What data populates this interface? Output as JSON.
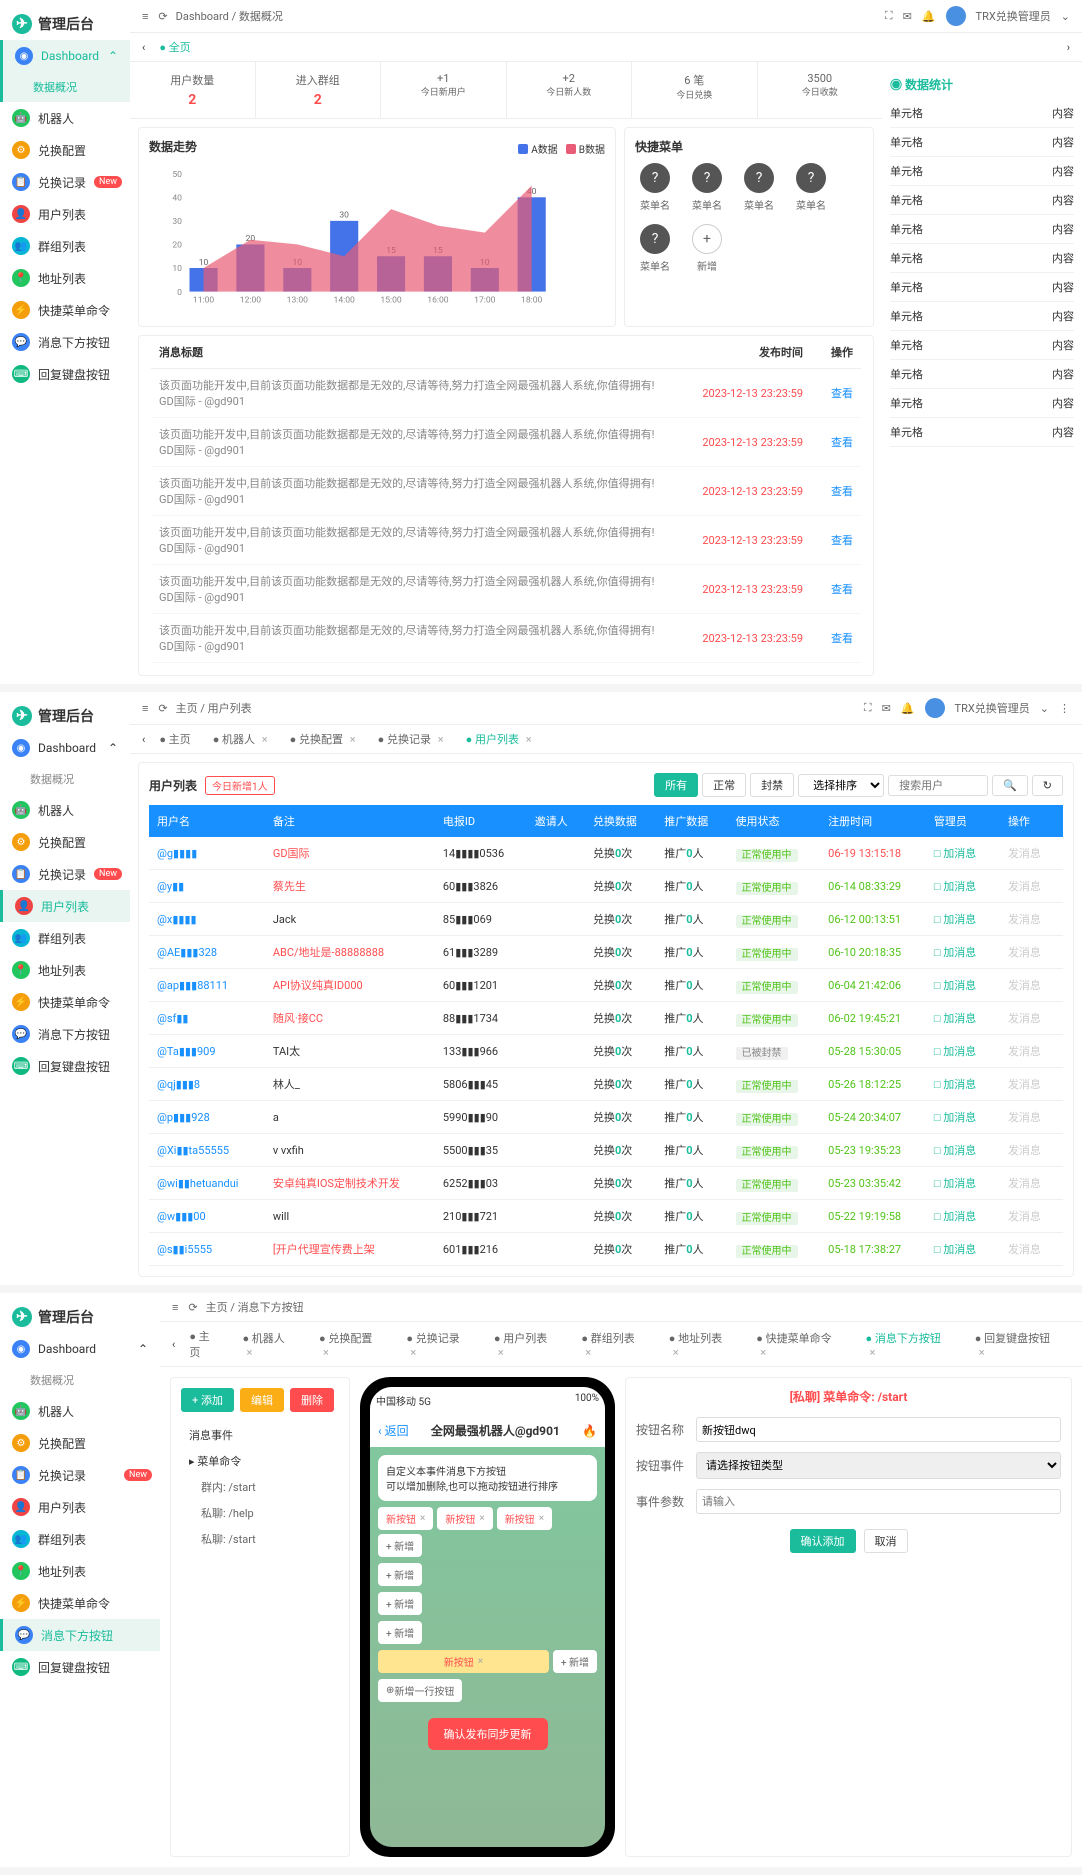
{
  "brand": "管理后台",
  "user_label": "TRX兑换管理员",
  "nav": {
    "dashboard": "Dashboard",
    "overview": "数据概况",
    "robot": "机器人",
    "exchange_cfg": "兑换配置",
    "exchange_log": "兑换记录",
    "new_badge": "New",
    "user_list": "用户列表",
    "group_list": "群组列表",
    "addr_list": "地址列表",
    "shortcut_cmd": "快捷菜单命令",
    "msg_button": "消息下方按钮",
    "reply_kb": "回复键盘按钮"
  },
  "nav_colors": {
    "dashboard": "#3b82f6",
    "robot": "#22c55e",
    "exchange_cfg": "#f59e0b",
    "exchange_log": "#3b82f6",
    "user_list": "#ef4444",
    "group_list": "#06b6d4",
    "addr_list": "#22c55e",
    "shortcut_cmd": "#f59e0b",
    "msg_button": "#3b82f6",
    "reply_kb": "#10b981"
  },
  "breadcrumb1": [
    "Dashboard",
    "数据概况"
  ],
  "tabs1": [
    "全页"
  ],
  "stats": [
    {
      "label": "用户数量",
      "value": "2",
      "red": true
    },
    {
      "label": "进入群组",
      "value": "2",
      "red": true
    },
    {
      "label": "+1",
      "sub": "今日新用户",
      "value": ""
    },
    {
      "label": "+2",
      "sub": "今日新人数",
      "value": ""
    },
    {
      "label": "6 笔",
      "sub": "今日兑换",
      "value": ""
    },
    {
      "label": "3500",
      "sub": "今日收款",
      "value": ""
    }
  ],
  "chart": {
    "title": "数据走势",
    "legend_a": "A数据",
    "legend_b": "B数据",
    "color_a": "#4472e8",
    "color_b": "#e85d75",
    "x": [
      "11:00",
      "12:00",
      "13:00",
      "14:00",
      "15:00",
      "16:00",
      "17:00",
      "18:00"
    ],
    "bars": [
      10,
      20,
      10,
      30,
      15,
      15,
      10,
      40
    ],
    "line": [
      10,
      22,
      20,
      15,
      35,
      28,
      25,
      45
    ],
    "ymax": 50
  },
  "shortcuts": {
    "title": "快捷菜单",
    "label": "菜单名",
    "add": "新增"
  },
  "side_table": {
    "title": "数据统计",
    "col_a": "单元格",
    "col_b": "内容",
    "rows": 12
  },
  "msg_list": {
    "cols": [
      "消息标题",
      "发布时间",
      "操作"
    ],
    "text": "该页面功能开发中,目前该页面功能数据都是无效的,尽请等待,努力打造全网最强机器人系统,你值得拥有! GD国际 - @gd901",
    "times": [
      "2023-12-13 23:23:59",
      "2023-12-13 23:23:59",
      "2023-12-13 23:23:59",
      "2023-12-13 23:23:59",
      "2023-12-13 23:23:59",
      "2023-12-13 23:23:59"
    ],
    "action": "查看"
  },
  "breadcrumb2": [
    "主页",
    "用户列表"
  ],
  "tabs2": [
    "主页",
    "机器人",
    "兑换配置",
    "兑换记录",
    "用户列表"
  ],
  "user_list_title": "用户列表",
  "user_list_pill": "今日新增1人",
  "filter_btns": [
    "所有",
    "正常",
    "封禁"
  ],
  "search_placeholder": "搜索用户",
  "utable_cols": [
    "用户名",
    "备注",
    "电报ID",
    "邀请人",
    "兑换数据",
    "推广数据",
    "使用状态",
    "注册时间",
    "管理员",
    "操作"
  ],
  "urows": [
    {
      "u": "@g▮▮▮▮",
      "r": "GD国际",
      "rc": "red",
      "id": "14▮▮▮▮0536",
      "ex": "兑换0次",
      "pr": "推广0人",
      "st": "正常使用中",
      "t": "06-19 13:15:18",
      "tc": "red"
    },
    {
      "u": "@y▮▮",
      "r": "蔡先生",
      "rc": "red",
      "id": "60▮▮▮3826",
      "ex": "兑换0次",
      "pr": "推广0人",
      "st": "正常使用中",
      "t": "06-14 08:33:29"
    },
    {
      "u": "@x▮▮▮▮",
      "r": "Jack",
      "rc": "",
      "id": "85▮▮▮069",
      "ex": "兑换0次",
      "pr": "推广0人",
      "st": "正常使用中",
      "t": "06-12 00:13:51"
    },
    {
      "u": "@AE▮▮▮328",
      "r": "ABC/地址是-88888888",
      "rc": "red",
      "id": "61▮▮▮3289",
      "ex": "兑换0次",
      "pr": "推广0人",
      "st": "正常使用中",
      "t": "06-10 20:18:35"
    },
    {
      "u": "@ap▮▮▮88111",
      "r": "API协议纯真ID000",
      "rc": "red",
      "id": "60▮▮▮1201",
      "ex": "兑换0次",
      "pr": "推广0人",
      "st": "正常使用中",
      "t": "06-04 21:42:06"
    },
    {
      "u": "@sf▮▮",
      "r": "随风·接CC",
      "rc": "red",
      "id": "88▮▮▮1734",
      "ex": "兑换0次",
      "pr": "推广0人",
      "st": "正常使用中",
      "t": "06-02 19:45:21"
    },
    {
      "u": "@Ta▮▮▮909",
      "r": "TAI太",
      "rc": "",
      "id": "133▮▮▮966",
      "ex": "兑换0次",
      "pr": "推广0人",
      "st": "已被封禁",
      "sc": "gray",
      "t": "05-28 15:30:05"
    },
    {
      "u": "@qj▮▮▮8",
      "r": "林人_",
      "rc": "",
      "id": "5806▮▮▮45",
      "ex": "兑换0次",
      "pr": "推广0人",
      "st": "正常使用中",
      "t": "05-26 18:12:25"
    },
    {
      "u": "@p▮▮▮928",
      "r": "a",
      "rc": "",
      "id": "5990▮▮▮90",
      "ex": "兑换0次",
      "pr": "推广0人",
      "st": "正常使用中",
      "t": "05-24 20:34:07"
    },
    {
      "u": "@Xi▮▮ta55555",
      "r": "v vxfih",
      "rc": "",
      "id": "5500▮▮▮35",
      "ex": "兑换0次",
      "pr": "推广0人",
      "st": "正常使用中",
      "t": "05-23 19:35:23"
    },
    {
      "u": "@wi▮▮hetuandui",
      "r": "安卓纯真IOS定制技术开发",
      "rc": "red",
      "id": "6252▮▮▮03",
      "ex": "兑换0次",
      "pr": "推广0人",
      "st": "正常使用中",
      "t": "05-23 03:35:42"
    },
    {
      "u": "@w▮▮▮00",
      "r": "will",
      "rc": "",
      "id": "210▮▮▮721",
      "ex": "兑换0次",
      "pr": "推广0人",
      "st": "正常使用中",
      "t": "05-22 19:19:58"
    },
    {
      "u": "@s▮▮i5555",
      "r": "[开户代理宣传费上架",
      "rc": "red",
      "id": "601▮▮▮216",
      "ex": "兑换0次",
      "pr": "推广0人",
      "st": "正常使用中",
      "t": "05-18 17:38:27"
    }
  ],
  "act_add": "加消息",
  "act_del": "发消息",
  "breadcrumb3": [
    "主页",
    "消息下方按钮"
  ],
  "tabs3": [
    "主页",
    "机器人",
    "兑换配置",
    "兑换记录",
    "用户列表",
    "群组列表",
    "地址列表",
    "快捷菜单命令",
    "消息下方按钮",
    "回复键盘按钮"
  ],
  "p3": {
    "add": "添加",
    "edit": "编辑",
    "del": "删除",
    "event_title": "消息事件",
    "menu_cmd": "菜单命令",
    "tree": [
      "群内: /start",
      "私聊: /help",
      "私聊: /start"
    ],
    "phone_carrier": "中国移动 5G",
    "phone_battery": "100%",
    "phone_back": "返回",
    "phone_title": "全网最强机器人@gd901",
    "phone_msg": "自定义本事件消息下方按钮\n可以增加删除,也可以拖动按钮进行排序",
    "chip_new": "新按钮",
    "chip_add": "+ 新增",
    "chip_addrow": "新增一行按钮",
    "publish": "确认发布同步更新",
    "form_title": "[私聊]   菜单命令: /start",
    "form_name": "按钮名称",
    "form_name_val": "新按钮dwq",
    "form_event": "按钮事件",
    "form_event_ph": "请选择按钮类型",
    "form_param": "事件参数",
    "form_param_ph": "请输入",
    "confirm": "确认添加",
    "cancel": "取消"
  }
}
